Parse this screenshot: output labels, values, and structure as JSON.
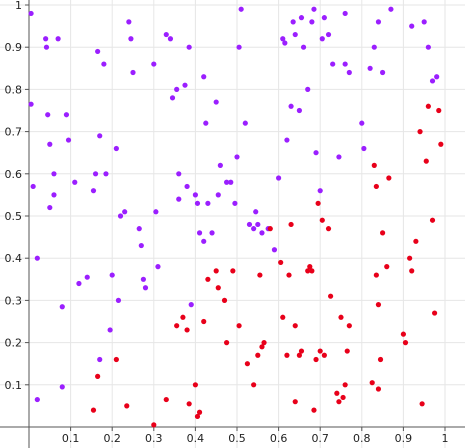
{
  "chart_data": {
    "type": "scatter",
    "title": "",
    "xlabel": "",
    "ylabel": "",
    "xlim": [
      0,
      1.0
    ],
    "ylim": [
      0,
      1.0
    ],
    "grid": true,
    "x_ticks": [
      {
        "value": 0.1,
        "label": "0.1"
      },
      {
        "value": 0.2,
        "label": "0.2"
      },
      {
        "value": 0.3,
        "label": "0.3"
      },
      {
        "value": 0.4,
        "label": "0.4"
      },
      {
        "value": 0.5,
        "label": "0.5"
      },
      {
        "value": 0.6,
        "label": "0.6"
      },
      {
        "value": 0.7,
        "label": "0.7"
      },
      {
        "value": 0.8,
        "label": "0.8"
      },
      {
        "value": 0.9,
        "label": "0.9"
      },
      {
        "value": 1.0,
        "label": "1"
      }
    ],
    "y_ticks": [
      {
        "value": 0.1,
        "label": "0.1"
      },
      {
        "value": 0.2,
        "label": "0.2"
      },
      {
        "value": 0.3,
        "label": "0.3"
      },
      {
        "value": 0.4,
        "label": "0.4"
      },
      {
        "value": 0.5,
        "label": "0.5"
      },
      {
        "value": 0.6,
        "label": "0.6"
      },
      {
        "value": 0.7,
        "label": "0.7"
      },
      {
        "value": 0.8,
        "label": "0.8"
      },
      {
        "value": 0.9,
        "label": "0.9"
      },
      {
        "value": 1.0,
        "label": "1"
      }
    ],
    "series": [
      {
        "color": "#9b1fff",
        "points": [
          [
            0.005,
            0.98
          ],
          [
            0.005,
            0.765
          ],
          [
            0.01,
            0.57
          ],
          [
            0.02,
            0.4
          ],
          [
            0.02,
            0.065
          ],
          [
            0.04,
            0.92
          ],
          [
            0.042,
            0.9
          ],
          [
            0.045,
            0.74
          ],
          [
            0.05,
            0.67
          ],
          [
            0.05,
            0.52
          ],
          [
            0.06,
            0.6
          ],
          [
            0.06,
            0.55
          ],
          [
            0.07,
            0.92
          ],
          [
            0.08,
            0.285
          ],
          [
            0.08,
            0.095
          ],
          [
            0.09,
            0.74
          ],
          [
            0.095,
            0.68
          ],
          [
            0.11,
            0.58
          ],
          [
            0.12,
            0.34
          ],
          [
            0.14,
            0.355
          ],
          [
            0.155,
            0.56
          ],
          [
            0.16,
            0.6
          ],
          [
            0.165,
            0.89
          ],
          [
            0.17,
            0.69
          ],
          [
            0.17,
            0.16
          ],
          [
            0.18,
            0.86
          ],
          [
            0.185,
            0.6
          ],
          [
            0.195,
            0.23
          ],
          [
            0.2,
            0.36
          ],
          [
            0.21,
            0.66
          ],
          [
            0.215,
            0.3
          ],
          [
            0.22,
            0.5
          ],
          [
            0.23,
            0.51
          ],
          [
            0.24,
            0.96
          ],
          [
            0.245,
            0.92
          ],
          [
            0.25,
            0.84
          ],
          [
            0.265,
            0.47
          ],
          [
            0.27,
            0.43
          ],
          [
            0.275,
            0.35
          ],
          [
            0.28,
            0.33
          ],
          [
            0.3,
            0.86
          ],
          [
            0.305,
            0.51
          ],
          [
            0.31,
            0.38
          ],
          [
            0.33,
            0.93
          ],
          [
            0.34,
            0.92
          ],
          [
            0.345,
            0.78
          ],
          [
            0.355,
            0.8
          ],
          [
            0.36,
            0.6
          ],
          [
            0.36,
            0.54
          ],
          [
            0.375,
            0.81
          ],
          [
            0.38,
            0.57
          ],
          [
            0.385,
            0.9
          ],
          [
            0.39,
            0.29
          ],
          [
            0.4,
            0.55
          ],
          [
            0.405,
            0.53
          ],
          [
            0.41,
            0.46
          ],
          [
            0.42,
            0.83
          ],
          [
            0.42,
            0.44
          ],
          [
            0.425,
            0.72
          ],
          [
            0.43,
            0.53
          ],
          [
            0.44,
            0.46
          ],
          [
            0.45,
            0.77
          ],
          [
            0.455,
            0.55
          ],
          [
            0.46,
            0.62
          ],
          [
            0.475,
            0.58
          ],
          [
            0.485,
            0.58
          ],
          [
            0.495,
            0.53
          ],
          [
            0.5,
            0.64
          ],
          [
            0.505,
            0.9
          ],
          [
            0.51,
            0.99
          ],
          [
            0.52,
            0.72
          ],
          [
            0.53,
            0.48
          ],
          [
            0.54,
            0.47
          ],
          [
            0.545,
            0.51
          ],
          [
            0.55,
            0.48
          ],
          [
            0.56,
            0.46
          ],
          [
            0.575,
            0.47
          ],
          [
            0.59,
            0.42
          ],
          [
            0.6,
            0.59
          ],
          [
            0.61,
            0.92
          ],
          [
            0.615,
            0.91
          ],
          [
            0.62,
            0.68
          ],
          [
            0.63,
            0.76
          ],
          [
            0.635,
            0.96
          ],
          [
            0.64,
            0.93
          ],
          [
            0.65,
            0.75
          ],
          [
            0.655,
            0.97
          ],
          [
            0.66,
            0.9
          ],
          [
            0.67,
            0.8
          ],
          [
            0.68,
            0.96
          ],
          [
            0.685,
            0.99
          ],
          [
            0.69,
            0.65
          ],
          [
            0.7,
            0.56
          ],
          [
            0.705,
            0.92
          ],
          [
            0.71,
            0.97
          ],
          [
            0.72,
            0.93
          ],
          [
            0.73,
            0.86
          ],
          [
            0.745,
            0.64
          ],
          [
            0.76,
            0.98
          ],
          [
            0.76,
            0.86
          ],
          [
            0.77,
            0.84
          ],
          [
            0.8,
            0.72
          ],
          [
            0.805,
            0.66
          ],
          [
            0.82,
            0.85
          ],
          [
            0.83,
            0.9
          ],
          [
            0.84,
            0.96
          ],
          [
            0.85,
            0.84
          ],
          [
            0.87,
            0.99
          ],
          [
            0.92,
            0.95
          ],
          [
            0.95,
            0.96
          ],
          [
            0.96,
            0.9
          ],
          [
            0.97,
            0.82
          ],
          [
            0.98,
            0.83
          ]
        ]
      },
      {
        "color": "#e8001a",
        "points": [
          [
            0.155,
            0.04
          ],
          [
            0.165,
            0.12
          ],
          [
            0.21,
            0.16
          ],
          [
            0.235,
            0.05
          ],
          [
            0.3,
            0.005
          ],
          [
            0.33,
            0.065
          ],
          [
            0.355,
            0.24
          ],
          [
            0.37,
            0.26
          ],
          [
            0.38,
            0.23
          ],
          [
            0.385,
            0.055
          ],
          [
            0.4,
            0.1
          ],
          [
            0.405,
            0.025
          ],
          [
            0.41,
            0.035
          ],
          [
            0.42,
            0.25
          ],
          [
            0.43,
            0.35
          ],
          [
            0.45,
            0.37
          ],
          [
            0.455,
            0.33
          ],
          [
            0.47,
            0.3
          ],
          [
            0.475,
            0.2
          ],
          [
            0.49,
            0.37
          ],
          [
            0.505,
            0.24
          ],
          [
            0.525,
            0.15
          ],
          [
            0.54,
            0.1
          ],
          [
            0.55,
            0.17
          ],
          [
            0.555,
            0.36
          ],
          [
            0.56,
            0.19
          ],
          [
            0.565,
            0.2
          ],
          [
            0.58,
            0.47
          ],
          [
            0.605,
            0.39
          ],
          [
            0.61,
            0.26
          ],
          [
            0.62,
            0.17
          ],
          [
            0.625,
            0.36
          ],
          [
            0.63,
            0.48
          ],
          [
            0.64,
            0.24
          ],
          [
            0.64,
            0.06
          ],
          [
            0.65,
            0.17
          ],
          [
            0.655,
            0.18
          ],
          [
            0.67,
            0.37
          ],
          [
            0.675,
            0.38
          ],
          [
            0.68,
            0.37
          ],
          [
            0.685,
            0.04
          ],
          [
            0.69,
            0.16
          ],
          [
            0.695,
            0.53
          ],
          [
            0.7,
            0.18
          ],
          [
            0.705,
            0.49
          ],
          [
            0.71,
            0.17
          ],
          [
            0.72,
            0.47
          ],
          [
            0.725,
            0.31
          ],
          [
            0.74,
            0.08
          ],
          [
            0.745,
            0.06
          ],
          [
            0.75,
            0.26
          ],
          [
            0.755,
            0.07
          ],
          [
            0.76,
            0.1
          ],
          [
            0.765,
            0.18
          ],
          [
            0.77,
            0.24
          ],
          [
            0.825,
            0.105
          ],
          [
            0.83,
            0.62
          ],
          [
            0.835,
            0.36
          ],
          [
            0.835,
            0.57
          ],
          [
            0.84,
            0.09
          ],
          [
            0.84,
            0.29
          ],
          [
            0.845,
            0.16
          ],
          [
            0.85,
            0.46
          ],
          [
            0.86,
            0.38
          ],
          [
            0.865,
            0.59
          ],
          [
            0.9,
            0.22
          ],
          [
            0.905,
            0.2
          ],
          [
            0.915,
            0.4
          ],
          [
            0.92,
            0.37
          ],
          [
            0.93,
            0.44
          ],
          [
            0.94,
            0.7
          ],
          [
            0.945,
            0.055
          ],
          [
            0.955,
            0.63
          ],
          [
            0.96,
            0.76
          ],
          [
            0.97,
            0.49
          ],
          [
            0.975,
            0.27
          ],
          [
            0.985,
            0.75
          ],
          [
            0.99,
            0.67
          ]
        ]
      }
    ]
  }
}
